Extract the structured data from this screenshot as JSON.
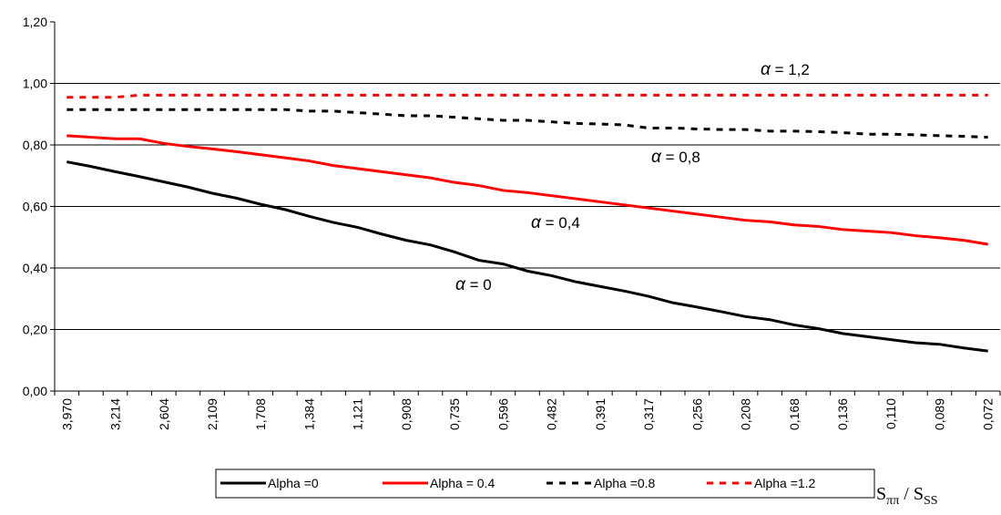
{
  "chart_data": {
    "type": "line",
    "categories": [
      "3,970",
      null,
      "3,214",
      null,
      "2,604",
      null,
      "2,109",
      null,
      "1,708",
      null,
      "1,384",
      null,
      "1,121",
      null,
      "0,908",
      null,
      "0,735",
      null,
      "0,596",
      null,
      "0,482",
      null,
      "0,391",
      null,
      "0,317",
      null,
      "0,256",
      null,
      "0,208",
      null,
      "0,168",
      null,
      "0,136",
      null,
      "0,110",
      null,
      "0,089",
      null,
      "0,072"
    ],
    "series": [
      {
        "name": "Alpha =0",
        "color": "#000000",
        "style": "solid",
        "values": [
          0.745,
          0.73,
          0.713,
          0.697,
          0.68,
          0.663,
          0.643,
          0.627,
          0.607,
          0.59,
          0.568,
          0.548,
          0.532,
          0.51,
          0.49,
          0.475,
          0.452,
          0.425,
          0.413,
          0.39,
          0.375,
          0.355,
          0.34,
          0.325,
          0.308,
          0.287,
          0.273,
          0.258,
          0.242,
          0.232,
          0.215,
          0.203,
          0.187,
          0.177,
          0.167,
          0.157,
          0.152,
          0.14,
          0.13
        ]
      },
      {
        "name": "Alpha = 0.4",
        "color": "#ff0000",
        "style": "solid",
        "values": [
          0.83,
          0.825,
          0.82,
          0.82,
          0.805,
          0.795,
          0.787,
          0.778,
          0.768,
          0.758,
          0.748,
          0.733,
          0.723,
          0.713,
          0.703,
          0.693,
          0.678,
          0.668,
          0.652,
          0.645,
          0.635,
          0.625,
          0.615,
          0.605,
          0.595,
          0.585,
          0.575,
          0.565,
          0.555,
          0.55,
          0.54,
          0.535,
          0.525,
          0.52,
          0.515,
          0.505,
          0.498,
          0.49,
          0.477
        ]
      },
      {
        "name": "Alpha =0.8",
        "color": "#000000",
        "style": "dashed",
        "values": [
          0.915,
          0.915,
          0.915,
          0.915,
          0.915,
          0.915,
          0.915,
          0.915,
          0.915,
          0.915,
          0.91,
          0.91,
          0.905,
          0.9,
          0.895,
          0.895,
          0.89,
          0.885,
          0.88,
          0.88,
          0.875,
          0.87,
          0.868,
          0.865,
          0.855,
          0.855,
          0.852,
          0.85,
          0.85,
          0.845,
          0.845,
          0.843,
          0.84,
          0.835,
          0.835,
          0.833,
          0.83,
          0.828,
          0.825
        ]
      },
      {
        "name": "Alpha =1.2",
        "color": "#ff0000",
        "style": "dashed",
        "values": [
          0.955,
          0.955,
          0.955,
          0.962,
          0.962,
          0.962,
          0.962,
          0.962,
          0.962,
          0.962,
          0.962,
          0.962,
          0.962,
          0.962,
          0.962,
          0.962,
          0.962,
          0.962,
          0.962,
          0.962,
          0.962,
          0.962,
          0.962,
          0.962,
          0.962,
          0.962,
          0.962,
          0.962,
          0.962,
          0.962,
          0.962,
          0.962,
          0.962,
          0.962,
          0.962,
          0.962,
          0.962,
          0.962,
          0.962
        ]
      }
    ],
    "ylim": [
      0,
      1.2
    ],
    "yticks": [
      {
        "value": 0,
        "label": "0,00"
      },
      {
        "value": 0.2,
        "label": "0,20"
      },
      {
        "value": 0.4,
        "label": "0,40"
      },
      {
        "value": 0.6,
        "label": "0,60"
      },
      {
        "value": 0.8,
        "label": "0,80"
      },
      {
        "value": 1.0,
        "label": "1,00"
      },
      {
        "value": 1.2,
        "label": "1,20"
      }
    ],
    "grid": true,
    "annotations": [
      {
        "symbol": "α",
        "text": " = 1,2"
      },
      {
        "symbol": "α",
        "text": " = 0,8"
      },
      {
        "symbol": "α",
        "text": " = 0,4"
      },
      {
        "symbol": "α",
        "text": " = 0"
      }
    ],
    "x_label": {
      "s1": "S",
      "sub1": "ππ",
      "mid": " / S",
      "sub2": "SS"
    },
    "legend": "bottom"
  }
}
